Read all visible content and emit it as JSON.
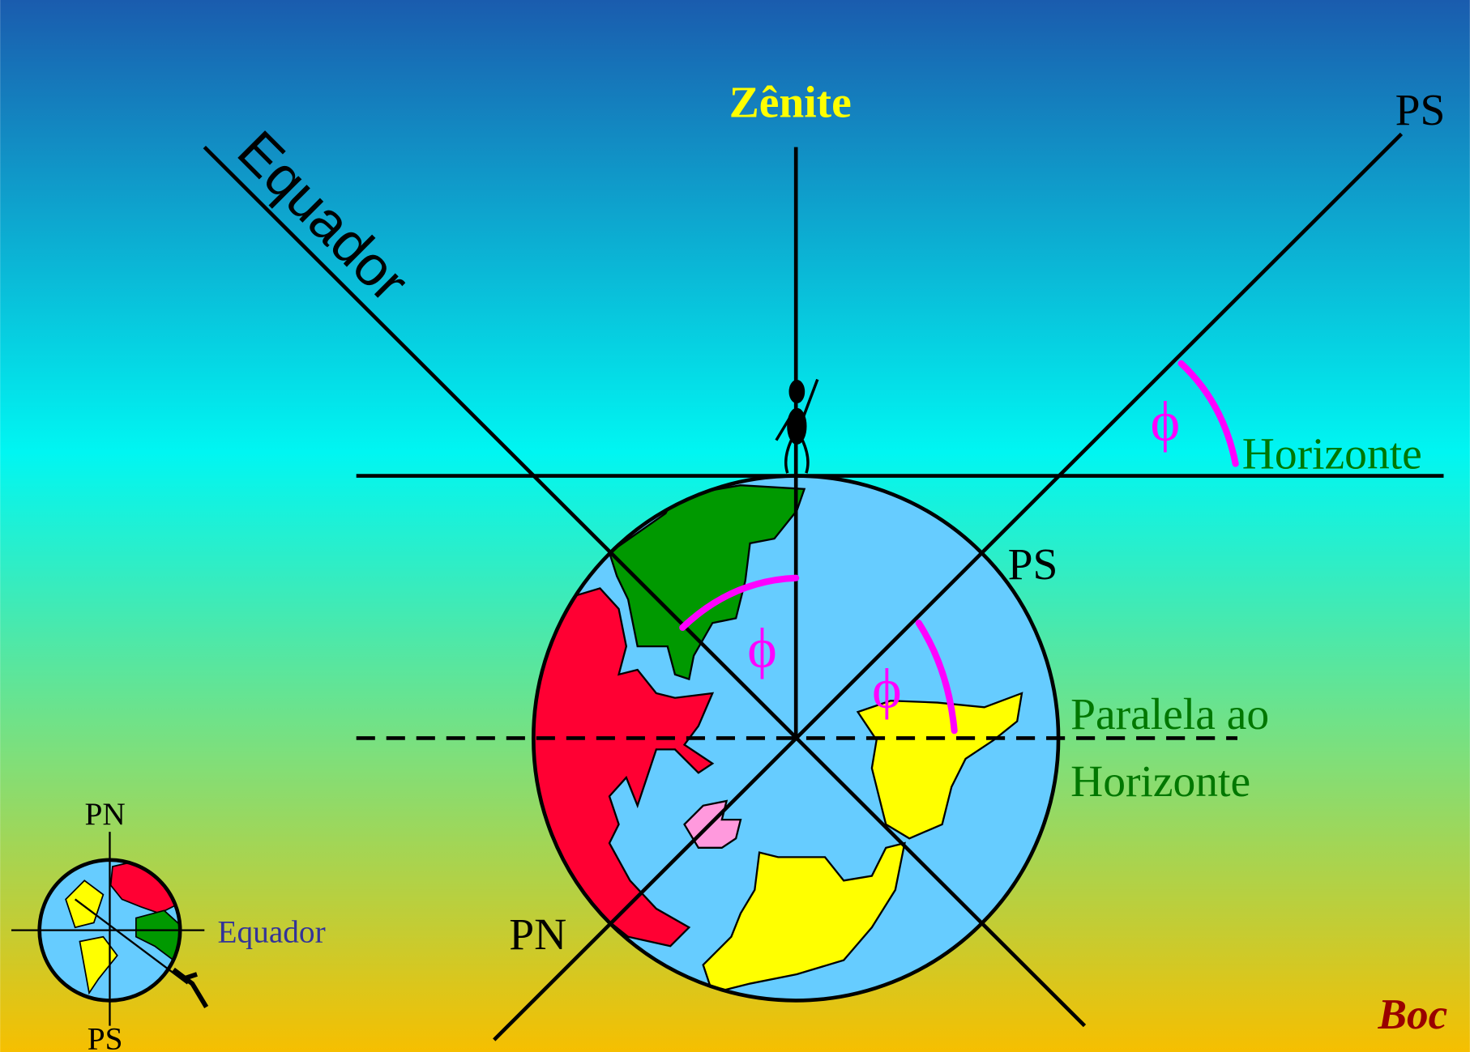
{
  "labels": {
    "zenith": "Zênite",
    "equator": "Equador",
    "ps_top": "PS",
    "horizon": "Horizonte",
    "ps_globe": "PS",
    "parallel": [
      "Paralela ao",
      "Horizonte"
    ],
    "pn": "PN",
    "phi": [
      "ϕ",
      "ϕ",
      "ϕ"
    ]
  },
  "inset": {
    "pn": "PN",
    "equator": "Equador",
    "ps": "PS"
  },
  "author": "Boc"
}
